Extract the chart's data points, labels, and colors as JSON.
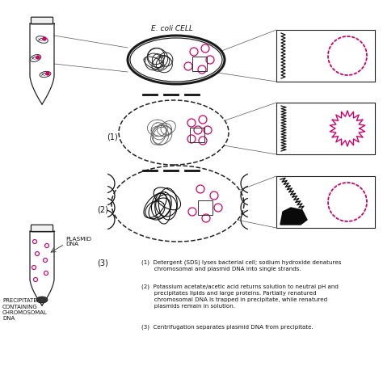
{
  "pink": "#d4006a",
  "dark": "#1a1a1a",
  "gray": "#555555",
  "bg": "#ffffff",
  "ecoli_label": "E. coli CELL",
  "plasmid_label": "PLASMID\nDNA",
  "precipitate_label": "PRECIPITATE\nCONTAINING\nCHROMOSOMAL\nDNA",
  "step1": "(1)",
  "step2": "(2)",
  "step3": "(3)",
  "desc1": "(1)  Detergent (SDS) lyses bacterial cell; sodium hydroxide denatures\n       chromosomal and plasmid DNA into single strands.",
  "desc2": "(2)  Potassium acetate/acetic acid returns solution to neutral pH and\n       precipitates lipids and large proteins. Partially renatured\n       chromosomal DNA is trapped in precipitate, while renatured\n       plasmids remain in solution.",
  "desc3": "(3)  Centrifugation separates plasmid DNA from precipitate."
}
